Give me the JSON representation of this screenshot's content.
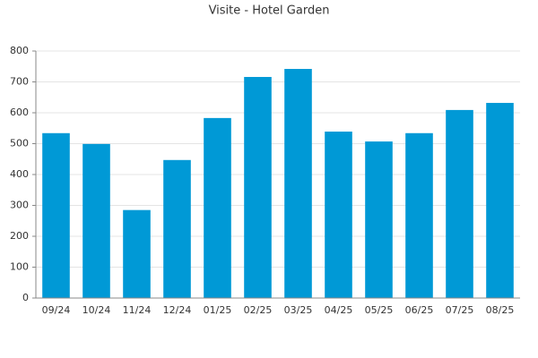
{
  "chart_data": {
    "type": "bar",
    "title": "Visite - Hotel Garden",
    "categories": [
      "09/24",
      "10/24",
      "11/24",
      "12/24",
      "01/25",
      "02/25",
      "03/25",
      "04/25",
      "05/25",
      "06/25",
      "07/25",
      "08/25"
    ],
    "values": [
      534,
      499,
      285,
      447,
      583,
      716,
      742,
      539,
      507,
      534,
      609,
      632
    ],
    "color": "#0099d6",
    "ylim": [
      0,
      800
    ],
    "yticks": [
      0,
      100,
      200,
      300,
      400,
      500,
      600,
      700,
      800
    ],
    "grid": true
  }
}
